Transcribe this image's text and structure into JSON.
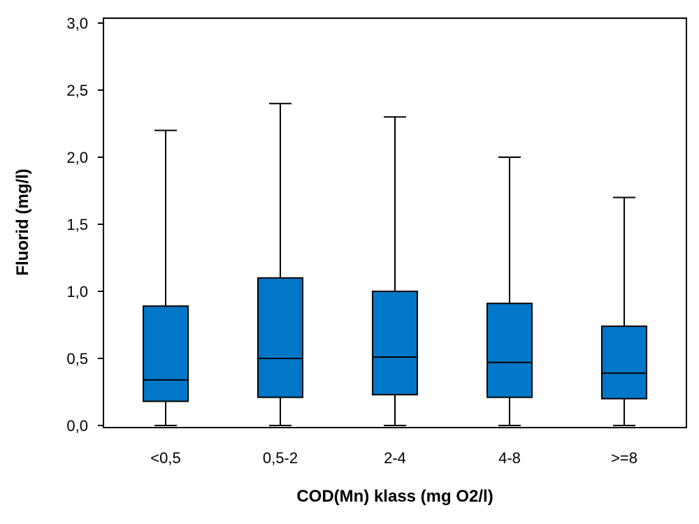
{
  "chart_data": {
    "type": "boxplot",
    "xlabel": "COD(Mn) klass (mg O2/l)",
    "ylabel": "Fluorid (mg/l)",
    "ylim": [
      0,
      3.0
    ],
    "yticks": [
      0.0,
      0.5,
      1.0,
      1.5,
      2.0,
      2.5,
      3.0
    ],
    "ytick_labels": [
      "0,0",
      "0,5",
      "1,0",
      "1,5",
      "2,0",
      "2,5",
      "3,0"
    ],
    "categories": [
      "<0,5",
      "0,5-2",
      "2-4",
      "4-8",
      ">=8"
    ],
    "boxes": [
      {
        "category": "<0,5",
        "whisker_low": 0.0,
        "q1": 0.18,
        "median": 0.34,
        "q3": 0.89,
        "whisker_high": 2.2
      },
      {
        "category": "0,5-2",
        "whisker_low": 0.0,
        "q1": 0.21,
        "median": 0.5,
        "q3": 1.1,
        "whisker_high": 2.4
      },
      {
        "category": "2-4",
        "whisker_low": 0.0,
        "q1": 0.23,
        "median": 0.51,
        "q3": 1.0,
        "whisker_high": 2.3
      },
      {
        "category": "4-8",
        "whisker_low": 0.0,
        "q1": 0.21,
        "median": 0.47,
        "q3": 0.91,
        "whisker_high": 2.0
      },
      {
        "category": ">=8",
        "whisker_low": 0.0,
        "q1": 0.2,
        "median": 0.39,
        "q3": 0.74,
        "whisker_high": 1.7
      }
    ],
    "box_color": "#0077c8",
    "grid": false,
    "legend": "none"
  }
}
